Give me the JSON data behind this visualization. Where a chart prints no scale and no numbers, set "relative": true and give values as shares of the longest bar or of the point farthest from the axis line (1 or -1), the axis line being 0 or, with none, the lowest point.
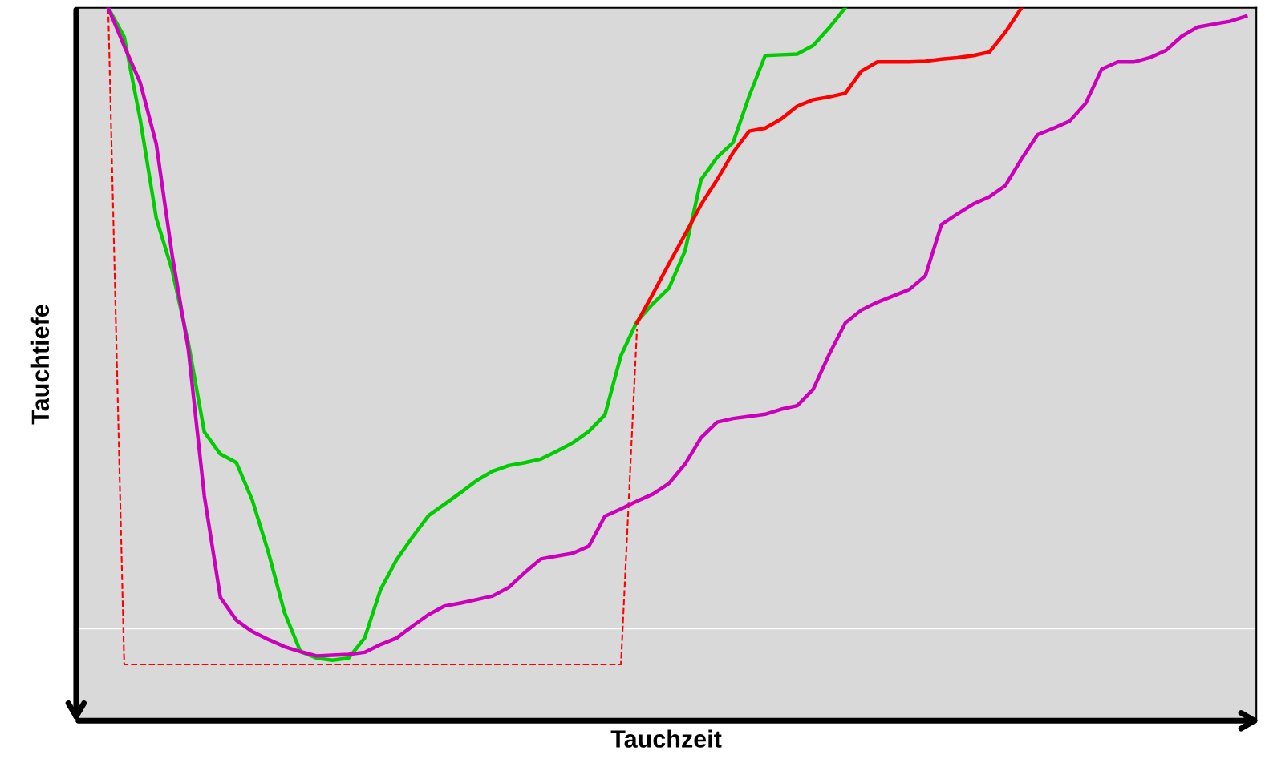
{
  "chart_data": {
    "type": "line",
    "relative": true,
    "xlabel": "Tauchzeit",
    "ylabel": "Tauchtiefe",
    "tick_labels": false,
    "legend": false,
    "marker": "none",
    "categories": [
      null,
      null,
      null,
      null,
      null,
      null,
      null,
      null,
      null,
      null,
      null,
      null,
      null,
      null,
      null,
      null,
      null,
      null,
      null,
      null,
      null,
      null,
      null,
      null,
      null,
      null,
      null,
      null,
      null,
      null,
      null,
      null,
      null,
      null,
      null,
      null,
      null,
      null,
      null,
      null,
      null,
      null,
      null,
      null,
      null,
      null,
      null,
      null,
      null,
      null,
      null,
      null,
      null,
      null,
      null,
      null,
      null,
      null,
      null,
      null,
      null,
      null,
      null,
      null,
      null,
      null,
      null,
      null,
      null,
      null,
      null,
      null,
      null,
      null
    ],
    "ref_lines": [
      {
        "axis": "y",
        "value": 0.129,
        "label": null,
        "color": "#ffffff"
      }
    ],
    "series": [
      {
        "color": "#ff0000",
        "line_style": "dashed",
        "values": [
          null,
          null,
          1,
          0.079,
          0.079,
          0.079,
          0.079,
          0.079,
          0.079,
          0.079,
          0.079,
          0.079,
          0.079,
          0.079,
          0.079,
          0.079,
          0.079,
          0.079,
          0.079,
          0.079,
          0.079,
          0.079,
          0.079,
          0.079,
          0.079,
          0.079,
          0.079,
          0.079,
          0.079,
          0.079,
          0.079,
          0.079,
          0.079,
          0.079,
          0.079,
          0.55,
          null,
          null,
          null,
          null,
          null,
          null,
          null,
          null,
          null,
          null,
          null,
          null,
          null,
          null,
          null,
          null,
          null,
          null,
          null,
          null,
          null,
          null,
          null,
          null,
          null,
          null,
          null,
          null,
          null,
          null,
          null,
          null,
          null,
          null,
          null,
          null,
          null,
          null
        ]
      },
      {
        "color": "#00cc00",
        "values": [
          null,
          null,
          1,
          0.959,
          0.843,
          0.705,
          0.631,
          0.53,
          0.405,
          0.374,
          0.362,
          0.309,
          0.236,
          0.152,
          0.097,
          0.088,
          0.085,
          0.088,
          0.116,
          0.184,
          0.226,
          0.258,
          0.288,
          0.304,
          0.32,
          0.337,
          0.35,
          0.358,
          0.362,
          0.367,
          0.378,
          0.39,
          0.406,
          0.429,
          0.512,
          0.56,
          0.585,
          0.607,
          0.659,
          0.759,
          0.79,
          0.811,
          0.876,
          0.933,
          0.934,
          0.935,
          0.947,
          0.972,
          1,
          null,
          null,
          null,
          null,
          null,
          null,
          null,
          null,
          null,
          null,
          null,
          null,
          null,
          null,
          null,
          null,
          null,
          null,
          null,
          null,
          null,
          null,
          null,
          null,
          null
        ]
      },
      {
        "color": "#ff0000",
        "values": [
          null,
          null,
          null,
          null,
          null,
          null,
          null,
          null,
          null,
          null,
          null,
          null,
          null,
          null,
          null,
          null,
          null,
          null,
          null,
          null,
          null,
          null,
          null,
          null,
          null,
          null,
          null,
          null,
          null,
          null,
          null,
          null,
          null,
          null,
          null,
          0.558,
          0.599,
          0.641,
          0.682,
          0.724,
          0.759,
          0.797,
          0.827,
          0.831,
          0.844,
          0.862,
          0.871,
          0.875,
          0.88,
          0.911,
          0.924,
          0.924,
          0.924,
          0.925,
          0.928,
          0.93,
          0.933,
          0.938,
          0.966,
          1,
          null,
          null,
          null,
          null,
          null,
          null,
          null,
          null,
          null,
          null,
          null,
          null,
          null,
          null
        ]
      },
      {
        "color": "#cc00bb",
        "values": [
          null,
          null,
          1,
          0.946,
          0.895,
          0.809,
          0.652,
          0.521,
          0.315,
          0.173,
          0.141,
          0.125,
          0.114,
          0.104,
          0.097,
          0.091,
          0.092,
          0.093,
          0.096,
          0.107,
          0.116,
          0.133,
          0.149,
          0.161,
          0.165,
          0.17,
          0.175,
          0.187,
          0.208,
          0.227,
          0.231,
          0.235,
          0.245,
          0.287,
          0.297,
          0.308,
          0.318,
          0.333,
          0.36,
          0.397,
          0.419,
          0.424,
          0.427,
          0.43,
          0.437,
          0.442,
          0.465,
          0.514,
          0.558,
          0.576,
          0.587,
          0.596,
          0.605,
          0.624,
          0.696,
          0.711,
          0.725,
          0.735,
          0.751,
          0.788,
          0.822,
          0.831,
          0.841,
          0.866,
          0.914,
          0.924,
          0.924,
          0.93,
          0.94,
          0.96,
          0.973,
          0.977,
          0.981,
          0.988
        ]
      }
    ]
  }
}
